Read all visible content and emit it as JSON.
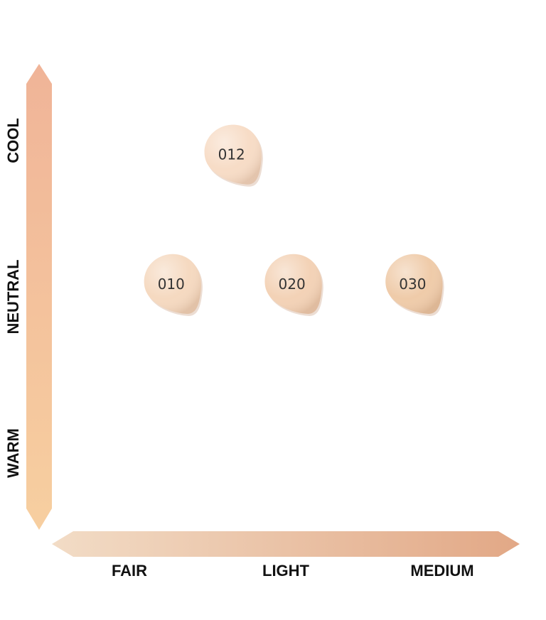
{
  "chart_data": {
    "type": "scatter",
    "title": "",
    "xlabel": "",
    "ylabel": "",
    "x_categories": [
      "FAIR",
      "LIGHT",
      "MEDIUM"
    ],
    "y_categories": [
      "WARM",
      "NEUTRAL",
      "COOL"
    ],
    "xlim": [
      0.2,
      3.3
    ],
    "ylim": [
      -0.9,
      2.7
    ],
    "grid": false,
    "x_axis_gradient": [
      "#f2dcc6",
      "#e2a886"
    ],
    "y_axis_gradient": [
      "#f0b498",
      "#f7cfa0"
    ],
    "points": [
      {
        "label": "012",
        "x": 1.4,
        "y": 2.0,
        "color": "#f7dcc6"
      },
      {
        "label": "010",
        "x": 1.0,
        "y": 1.0,
        "color": "#f5d9c0"
      },
      {
        "label": "020",
        "x": 1.8,
        "y": 1.0,
        "color": "#f3d2b6"
      },
      {
        "label": "030",
        "x": 2.6,
        "y": 1.0,
        "color": "#efcba9"
      }
    ]
  }
}
